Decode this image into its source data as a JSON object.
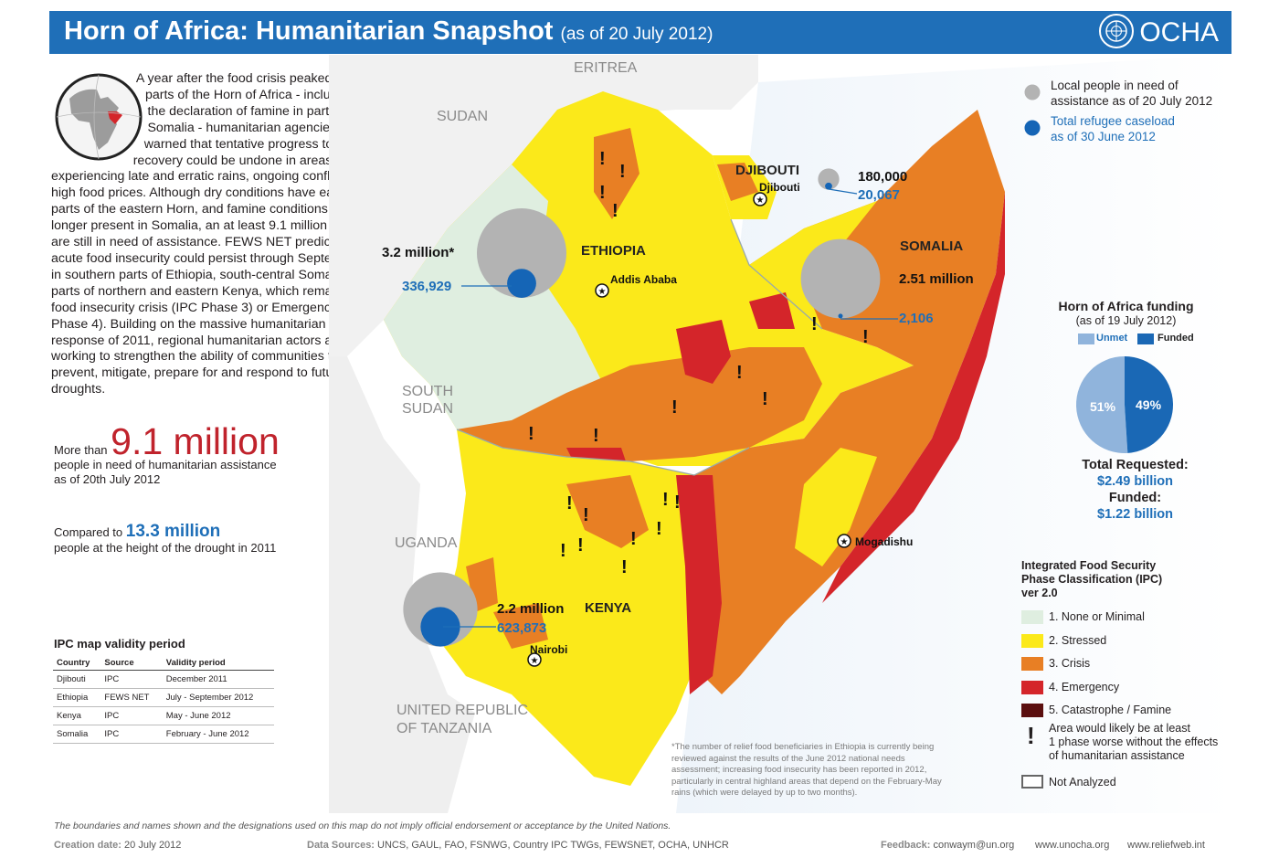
{
  "header": {
    "title": "Horn of Africa: Humanitarian Snapshot",
    "subtitle": "(as of 20 July 2012)",
    "org": "OCHA"
  },
  "intro": {
    "text": "A year after the food crisis peaked in parts of the Horn of Africa - including the declaration of famine in parts of Somalia - humanitarian agencies have warned that tentative progress towards recovery could be undone in areas experiencing late and erratic rains, ongoing conflict and high food prices. Although dry conditions have eased in parts of the eastern Horn, and famine conditions are no longer present in Somalia, an at least 9.1 million people are still in need of assistance. FEWS NET predicts that acute food insecurity could persist through September in southern parts of Ethiopia, south-central Somalia and parts of northern and eastern Kenya, which remain in food insecurity crisis (IPC Phase 3) or Emergency (IPC Phase 4). Building on the massive humanitarian response of 2011, regional humanitarian actors are working to strengthen the ability of communities to prevent, mitigate, prepare for and respond to future droughts."
  },
  "stats": {
    "more_than": "More than",
    "total": "9.1 million",
    "total_desc_1": "people in need of humanitarian assistance",
    "total_desc_2": "as of 20th July 2012",
    "compared": "Compared to",
    "peak": "13.3 million",
    "peak_desc": "people at the height of the drought in 2011"
  },
  "ipc_validity": {
    "title": "IPC map validity period",
    "columns": [
      "Country",
      "Source",
      "Validity period"
    ],
    "rows": [
      [
        "Djibouti",
        "IPC",
        "December 2011"
      ],
      [
        "Ethiopia",
        "FEWS NET",
        "July - September 2012"
      ],
      [
        "Kenya",
        "IPC",
        "May - June 2012"
      ],
      [
        "Somalia",
        "IPC",
        "February - June 2012"
      ]
    ]
  },
  "map": {
    "neighbors": [
      "ERITREA",
      "SUDAN",
      "SOUTH",
      "SUDAN",
      "UGANDA",
      "UNITED REPUBLIC",
      "OF TANZANIA"
    ],
    "countries": [
      "DJIBOUTI",
      "ETHIOPIA",
      "SOMALIA",
      "KENYA"
    ],
    "cities": [
      "Djibouti",
      "Addis Ababa",
      "Mogadishu",
      "Nairobi"
    ],
    "figures": {
      "djibouti_need": "180,000",
      "djibouti_ref": "20,067",
      "ethiopia_need": "3.2 million*",
      "ethiopia_ref": "336,929",
      "somalia_need": "2.51 million",
      "somalia_ref": "2,106",
      "kenya_need": "2.2 million",
      "kenya_ref": "623,873"
    },
    "circles": [
      {
        "country": "Djibouti",
        "need": 180000,
        "refugees": 20067
      },
      {
        "country": "Ethiopia",
        "need": 3200000,
        "refugees": 336929
      },
      {
        "country": "Somalia",
        "need": 2510000,
        "refugees": 2106
      },
      {
        "country": "Kenya",
        "need": 2200000,
        "refugees": 623873
      }
    ],
    "colors": {
      "none": "#dfeee0",
      "stressed": "#fbe91a",
      "crisis": "#e87f24",
      "emergency": "#d4252a",
      "famine": "#5b0f0f",
      "sea": "#cfe2f3",
      "need": "#b3b3b3",
      "refugee": "#1565b6"
    }
  },
  "legend": {
    "need": "Local people in need of assistance as of 20 July 2012",
    "need_1": "Local people in need of",
    "need_2": "assistance as of 20 July 2012",
    "ref_1": "Total refugee caseload",
    "ref_2": "as of 30 June 2012"
  },
  "funding": {
    "title": "Horn of Africa funding",
    "sub": "(as of 19 July 2012)",
    "unmet_label": "Unmet",
    "funded_label": "Funded",
    "unmet_pct_label": "51%",
    "funded_pct_label": "49%",
    "unmet_pct": 51,
    "funded_pct": 49,
    "unmet_color": "#90b4dc",
    "funded_color": "#1a68b5",
    "requested_label": "Total Requested:",
    "requested": "$2.49 billion",
    "funded_title": "Funded:",
    "funded": "$1.22 billion"
  },
  "ipc_legend": {
    "title_1": "Integrated Food Security",
    "title_2": "Phase Classification (IPC)",
    "title_3": "ver 2.0",
    "items": [
      "1. None or Minimal",
      "2. Stressed",
      "3. Crisis",
      "4. Emergency",
      "5. Catastrophe / Famine"
    ],
    "warn_1": "Area would likely be at least",
    "warn_2": "1 phase worse without the effects",
    "warn_3": "of humanitarian assistance",
    "not_analyzed": "Not Analyzed"
  },
  "footnote": "*The number of relief food beneficiaries in Ethiopia is currently being reviewed against the results of the June 2012 national needs assessment; increasing food insecurity has been reported in 2012, particularly in central highland areas that depend on the February-May rains (which were delayed by up to two months).",
  "footer": {
    "disclaimer": "The boundaries and names shown and the designations used on this map do not imply official endorsement or acceptance by the United Nations.",
    "creation_label": "Creation date:",
    "creation": "20 July 2012",
    "sources_label": "Data Sources:",
    "sources": "UNCS, GAUL, FAO, FSNWG, Country IPC TWGs,  FEWSNET, OCHA, UNHCR",
    "feedback_label": "Feedback:",
    "feedback": "conwaym@un.org",
    "site1": "www.unocha.org",
    "site2": "www.reliefweb.int"
  }
}
